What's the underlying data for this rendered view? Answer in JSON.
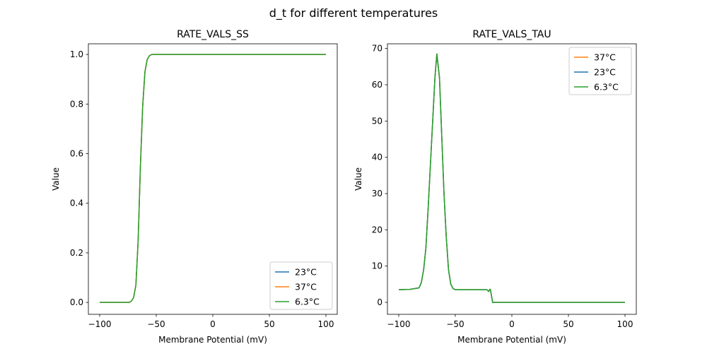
{
  "chart_data": {
    "title": "d_t for different temperatures",
    "colors": {
      "37°C": "#ff7f0e",
      "23°C": "#1f77b4",
      "6.3°C": "#2ca02c"
    },
    "panels": [
      {
        "type": "line",
        "title": "RATE_VALS_SS",
        "xlabel": "Membrane Potential (mV)",
        "ylabel": "Value",
        "xlim": [
          -110,
          110
        ],
        "ylim": [
          -0.048,
          1.043
        ],
        "xticks": [
          -100,
          -50,
          0,
          50,
          100
        ],
        "xtick_labels": [
          "−100",
          "−50",
          "0",
          "50",
          "100"
        ],
        "yticks": [
          0,
          0.2,
          0.4,
          0.6,
          0.8,
          1.0
        ],
        "ytick_labels": [
          "0.0",
          "0.2",
          "0.4",
          "0.6",
          "0.8",
          "1.0"
        ],
        "legend_position": "lower-right",
        "x": [
          -100,
          -74,
          -72,
          -70,
          -68,
          -66,
          -64,
          -62,
          -60,
          -58,
          -56,
          -54,
          100
        ],
        "series": [
          {
            "name": "23°C",
            "y": [
              0,
              0,
              0.005,
              0.02,
              0.07,
              0.25,
              0.55,
              0.79,
              0.93,
              0.98,
              0.995,
              1.0,
              1.0
            ]
          },
          {
            "name": "37°C",
            "y": [
              0,
              0,
              0.005,
              0.02,
              0.07,
              0.25,
              0.55,
              0.79,
              0.93,
              0.98,
              0.995,
              1.0,
              1.0
            ]
          },
          {
            "name": "6.3°C",
            "y": [
              0,
              0,
              0.005,
              0.02,
              0.07,
              0.25,
              0.55,
              0.79,
              0.93,
              0.98,
              0.995,
              1.0,
              1.0
            ]
          }
        ]
      },
      {
        "type": "line",
        "title": "RATE_VALS_TAU",
        "xlabel": "Membrane Potential (mV)",
        "ylabel": "Value",
        "xlim": [
          -110,
          110
        ],
        "ylim": [
          -3.3,
          71.3
        ],
        "xticks": [
          -100,
          -50,
          0,
          50,
          100
        ],
        "xtick_labels": [
          "−100",
          "−50",
          "0",
          "50",
          "100"
        ],
        "yticks": [
          0,
          10,
          20,
          30,
          40,
          50,
          60,
          70
        ],
        "ytick_labels": [
          "0",
          "10",
          "20",
          "30",
          "40",
          "50",
          "60",
          "70"
        ],
        "legend_position": "upper-right",
        "x": [
          -100,
          -90,
          -82,
          -80,
          -78,
          -76,
          -74,
          -72,
          -70,
          -68,
          -66.3,
          -64,
          -62,
          -60,
          -58,
          -56,
          -54,
          -52,
          -50,
          -22,
          -20.5,
          -19.5,
          -19,
          -17,
          100
        ],
        "series": [
          {
            "name": "37°C",
            "y": [
              3.5,
              3.6,
              4.0,
              5.5,
              9,
              15,
              26,
              38,
              50,
              62,
              68.5,
              62,
              46,
              30,
              18,
              9,
              5,
              3.8,
              3.5,
              3.5,
              3.0,
              3.6,
              3.6,
              0,
              0
            ]
          },
          {
            "name": "23°C",
            "y": [
              3.5,
              3.6,
              4.0,
              5.5,
              9,
              15,
              26,
              38,
              50,
              62,
              68.5,
              62,
              46,
              30,
              18,
              9,
              5,
              3.8,
              3.5,
              3.5,
              3.0,
              3.6,
              3.6,
              0,
              0
            ]
          },
          {
            "name": "6.3°C",
            "y": [
              3.5,
              3.6,
              4.0,
              5.5,
              9,
              15,
              26,
              38,
              50,
              62,
              68.5,
              62,
              46,
              30,
              18,
              9,
              5,
              3.8,
              3.5,
              3.5,
              3.0,
              3.6,
              3.6,
              0,
              0
            ]
          }
        ]
      }
    ]
  }
}
